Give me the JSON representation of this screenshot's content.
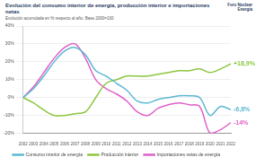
{
  "chart_data": {
    "type": "line",
    "title": "Evolución del consumo interior de energía, producción interior e importaciones netas",
    "subtitle": "Evolución acumulada en % respecto al año: Base 2000=100",
    "logo": "Foro Nuclear Energía",
    "categories": [
      "2002",
      "2003",
      "2004",
      "2005",
      "2006",
      "2007",
      "2008",
      "2009",
      "2010",
      "2011",
      "2012",
      "2013",
      "2014",
      "2015",
      "2016",
      "2017",
      "2018",
      "2019",
      "2020",
      "2021",
      "2022"
    ],
    "series": [
      {
        "name": "Consumo interior de energía",
        "color": "#5bb8d4",
        "values": [
          0,
          5,
          12,
          20,
          26,
          28,
          24,
          15,
          12,
          8,
          4,
          -2,
          -3,
          -1,
          0,
          1,
          1,
          0,
          -10,
          -5,
          -6.8
        ]
      },
      {
        "name": "Producción interior",
        "color": "#8cc63f",
        "values": [
          0,
          -3,
          -7,
          -10,
          -10,
          -9,
          -8,
          0,
          8,
          10,
          12,
          12,
          12,
          13,
          14,
          15,
          15,
          16,
          14,
          16,
          18.9
        ]
      },
      {
        "name": "Importaciones netas de energía",
        "color": "#e05fc8",
        "values": [
          0,
          6,
          14,
          22,
          28,
          30,
          22,
          10,
          5,
          2,
          -2,
          -8,
          -10,
          -6,
          -4,
          -3,
          -4,
          -5,
          -20,
          -18,
          -14
        ]
      }
    ],
    "annotations": [
      {
        "text": "+18,9%",
        "x": "2022",
        "y": 18.9,
        "color": "#8cc63f"
      },
      {
        "text": "-6,8%",
        "x": "2022",
        "y": -6.8,
        "color": "#5bb8d4"
      },
      {
        "text": "-14%",
        "x": "2022",
        "y": -14,
        "color": "#e05fc8"
      }
    ],
    "ylim": [
      -20,
      40
    ],
    "yticks": [
      {
        "value": -20,
        "label": "-20%"
      },
      {
        "value": -10,
        "label": "-10%"
      },
      {
        "value": 0,
        "label": "0%"
      },
      {
        "value": 10,
        "label": "10%"
      },
      {
        "value": 20,
        "label": "20%"
      },
      {
        "value": 30,
        "label": "30%"
      },
      {
        "value": 40,
        "label": "40%"
      }
    ],
    "grid": true,
    "legend": "bottom"
  }
}
